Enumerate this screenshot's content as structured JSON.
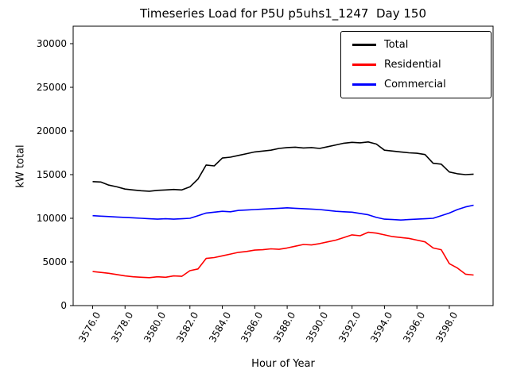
{
  "chart_data": {
    "type": "line",
    "title": "Timeseries Load for P5U p5uhs1_1247  Day 150",
    "xlabel": "Hour of Year",
    "ylabel": "kW total",
    "xlim": [
      3574.8,
      3600.7
    ],
    "ylim": [
      0,
      32000
    ],
    "grid": false,
    "legend_position": "upper right",
    "xticks": [
      3576,
      3578,
      3580,
      3582,
      3584,
      3586,
      3588,
      3590,
      3592,
      3594,
      3596,
      3598
    ],
    "xtick_labels": [
      "3576.0",
      "3578.0",
      "3580.0",
      "3582.0",
      "3584.0",
      "3586.0",
      "3588.0",
      "3590.0",
      "3592.0",
      "3594.0",
      "3596.0",
      "3598.0"
    ],
    "yticks": [
      0,
      5000,
      10000,
      15000,
      20000,
      25000,
      30000
    ],
    "ytick_labels": [
      "0",
      "5000",
      "10000",
      "15000",
      "20000",
      "25000",
      "30000"
    ],
    "x": [
      3576.0,
      3576.5,
      3577.0,
      3577.5,
      3578.0,
      3578.5,
      3579.0,
      3579.5,
      3580.0,
      3580.5,
      3581.0,
      3581.5,
      3582.0,
      3582.5,
      3583.0,
      3583.5,
      3584.0,
      3584.5,
      3585.0,
      3585.5,
      3586.0,
      3586.5,
      3587.0,
      3587.5,
      3588.0,
      3588.5,
      3589.0,
      3589.5,
      3590.0,
      3590.5,
      3591.0,
      3591.5,
      3592.0,
      3592.5,
      3593.0,
      3593.5,
      3594.0,
      3594.5,
      3595.0,
      3595.5,
      3596.0,
      3596.5,
      3597.0,
      3597.5,
      3598.0,
      3598.5,
      3599.0,
      3599.5
    ],
    "series": [
      {
        "name": "Total",
        "color": "#000000",
        "values": [
          14200,
          14150,
          13800,
          13600,
          13350,
          13250,
          13150,
          13100,
          13200,
          13250,
          13300,
          13250,
          13600,
          14500,
          16100,
          16000,
          16900,
          17000,
          17200,
          17400,
          17600,
          17700,
          17800,
          18000,
          18100,
          18150,
          18050,
          18100,
          18000,
          18200,
          18400,
          18600,
          18700,
          18650,
          18750,
          18500,
          17800,
          17700,
          17600,
          17500,
          17450,
          17300,
          16300,
          16200,
          15300,
          15100,
          15000,
          15050
        ]
      },
      {
        "name": "Residential",
        "color": "#ff0000",
        "values": [
          3900,
          3800,
          3700,
          3550,
          3400,
          3300,
          3250,
          3200,
          3300,
          3250,
          3400,
          3350,
          4000,
          4200,
          5400,
          5500,
          5700,
          5900,
          6100,
          6200,
          6350,
          6400,
          6500,
          6450,
          6600,
          6800,
          7000,
          6950,
          7100,
          7300,
          7500,
          7800,
          8100,
          8000,
          8400,
          8300,
          8100,
          7900,
          7800,
          7700,
          7500,
          7300,
          6600,
          6400,
          4800,
          4300,
          3600,
          3500
        ]
      },
      {
        "name": "Commercial",
        "color": "#0000ff",
        "values": [
          10300,
          10250,
          10200,
          10150,
          10100,
          10050,
          10000,
          9950,
          9900,
          9950,
          9900,
          9950,
          10000,
          10300,
          10600,
          10700,
          10800,
          10750,
          10900,
          10950,
          11000,
          11050,
          11100,
          11150,
          11200,
          11150,
          11100,
          11050,
          11000,
          10900,
          10800,
          10750,
          10700,
          10550,
          10400,
          10100,
          9900,
          9850,
          9800,
          9850,
          9900,
          9950,
          10000,
          10300,
          10600,
          11000,
          11300,
          11500
        ]
      }
    ]
  }
}
